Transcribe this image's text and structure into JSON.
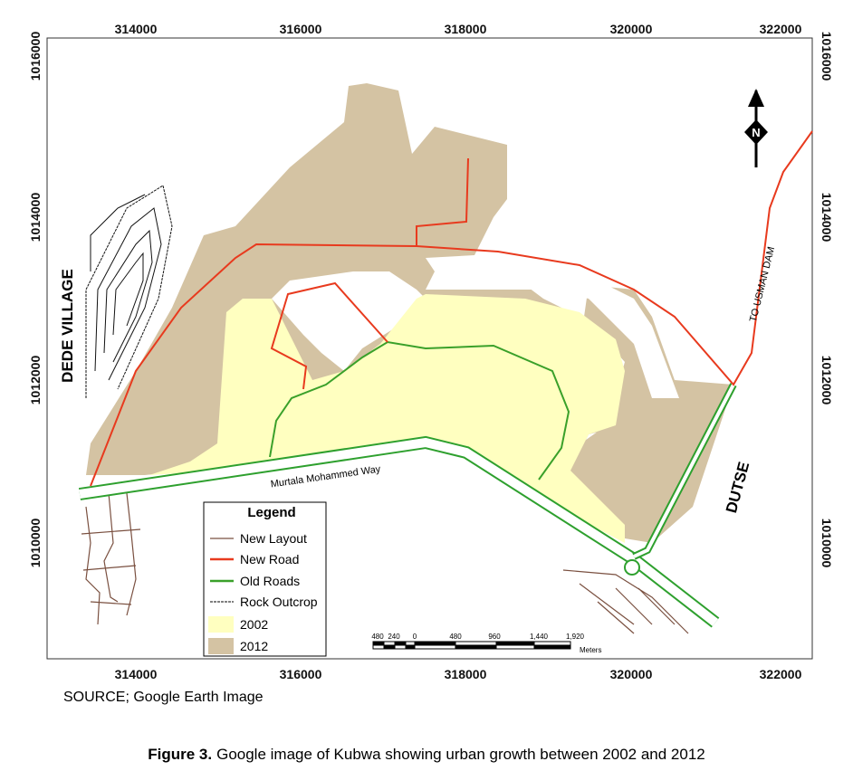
{
  "map": {
    "x_axis_labels": [
      314000,
      316000,
      318000,
      320000,
      322000
    ],
    "y_axis_labels": [
      1016000,
      1014000,
      1012000,
      1010000
    ],
    "places": [
      "DEDE VILLAGE",
      "TO USMAN DAM",
      "DUTSE",
      "Murtala Mohammed Way"
    ],
    "north": "N",
    "legend": {
      "title": "Legend",
      "items": [
        "New Layout",
        "New Road",
        "Old Roads",
        "Rock Outcrop",
        "2002",
        "2012"
      ]
    },
    "scale_bar": {
      "labels": [
        "480",
        "240",
        "0",
        "480",
        "960",
        "1,440",
        "1,920"
      ],
      "unit": "Meters"
    },
    "source": "SOURCE; Google Earth Image"
  },
  "caption": {
    "label": "Figure 3.",
    "text": "Google image of Kubwa showing urban growth between 2002 and 2012"
  }
}
